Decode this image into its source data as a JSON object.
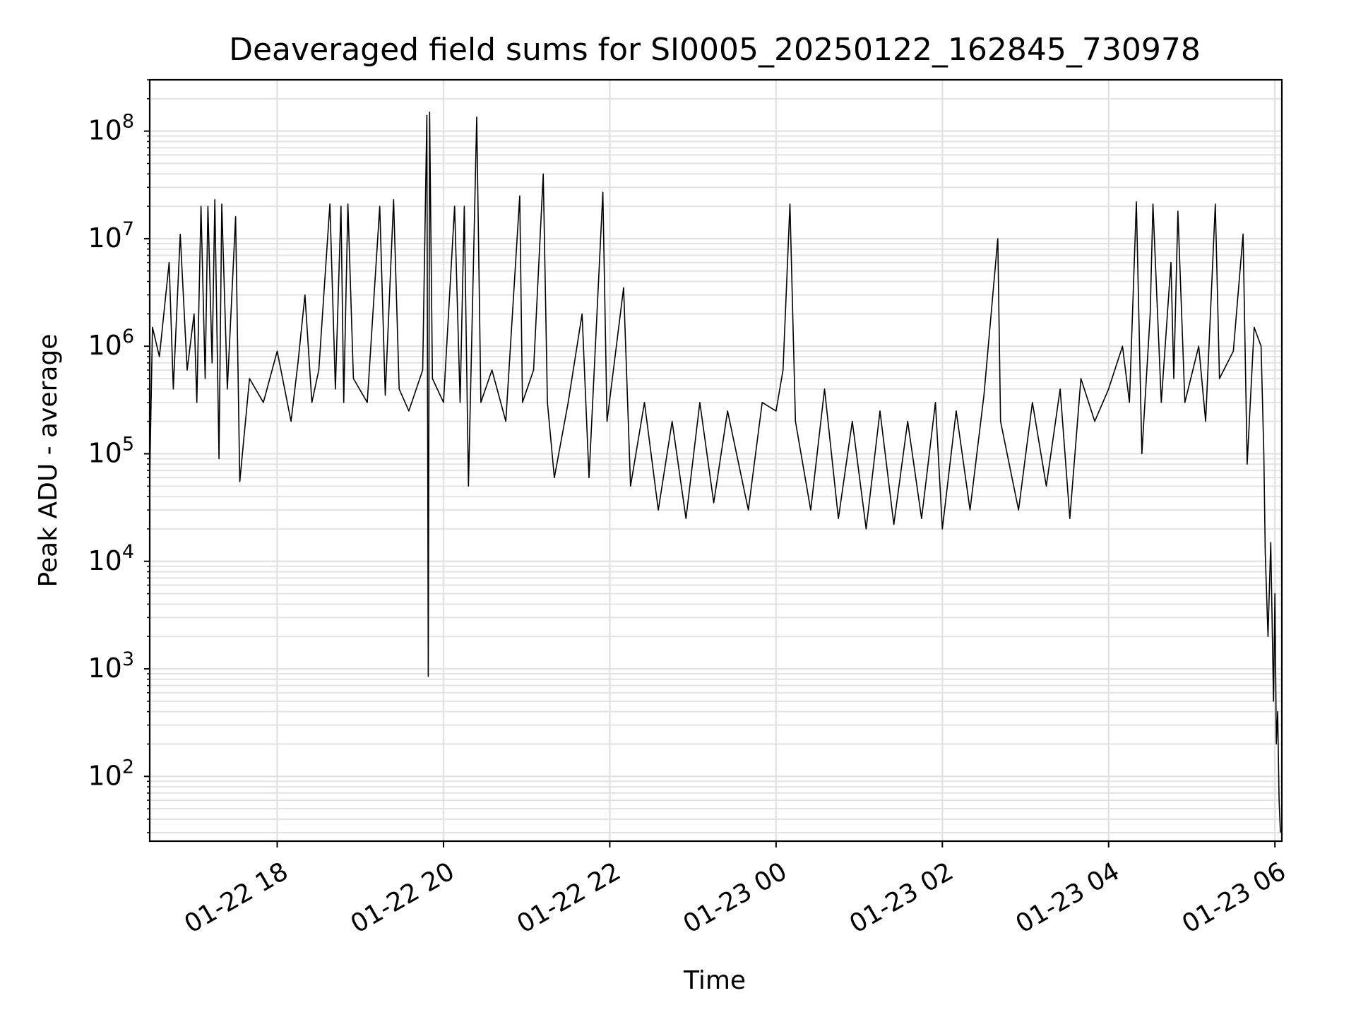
{
  "chart_data": {
    "type": "line",
    "title": "Deaveraged field sums for SI0005_20250122_162845_730978",
    "xlabel": "Time",
    "ylabel": "Peak ADU - average",
    "yscale": "log",
    "ylim": [
      25,
      300000000
    ],
    "xlim": [
      "2025-01-22 16:28",
      "2025-01-23 06:05"
    ],
    "grid": true,
    "line_color": "#000000",
    "grid_color": "#e3e3e3",
    "x_ticks": [
      {
        "t": "2025-01-22 18:00",
        "label": "01-22 18"
      },
      {
        "t": "2025-01-22 20:00",
        "label": "01-22 20"
      },
      {
        "t": "2025-01-22 22:00",
        "label": "01-22 22"
      },
      {
        "t": "2025-01-23 00:00",
        "label": "01-23 00"
      },
      {
        "t": "2025-01-23 02:00",
        "label": "01-23 02"
      },
      {
        "t": "2025-01-23 04:00",
        "label": "01-23 04"
      },
      {
        "t": "2025-01-23 06:00",
        "label": "01-23 06"
      }
    ],
    "y_ticks": [
      {
        "value": 100,
        "base": "10",
        "exp": "2"
      },
      {
        "value": 1000,
        "base": "10",
        "exp": "3"
      },
      {
        "value": 10000,
        "base": "10",
        "exp": "4"
      },
      {
        "value": 100000,
        "base": "10",
        "exp": "5"
      },
      {
        "value": 1000000,
        "base": "10",
        "exp": "6"
      },
      {
        "value": 10000000,
        "base": "10",
        "exp": "7"
      },
      {
        "value": 100000000,
        "base": "10",
        "exp": "8"
      }
    ],
    "series": [
      {
        "points": [
          [
            "2025-01-22 16:28",
            60000
          ],
          [
            "2025-01-22 16:30",
            1500000
          ],
          [
            "2025-01-22 16:35",
            800000
          ],
          [
            "2025-01-22 16:42",
            6000000
          ],
          [
            "2025-01-22 16:45",
            400000
          ],
          [
            "2025-01-22 16:50",
            11000000
          ],
          [
            "2025-01-22 16:55",
            600000
          ],
          [
            "2025-01-22 17:00",
            2000000
          ],
          [
            "2025-01-22 17:02",
            300000
          ],
          [
            "2025-01-22 17:05",
            20000000
          ],
          [
            "2025-01-22 17:08",
            500000
          ],
          [
            "2025-01-22 17:10",
            20000000
          ],
          [
            "2025-01-22 17:13",
            700000
          ],
          [
            "2025-01-22 17:15",
            23000000
          ],
          [
            "2025-01-22 17:18",
            90000
          ],
          [
            "2025-01-22 17:20",
            21000000
          ],
          [
            "2025-01-22 17:24",
            400000
          ],
          [
            "2025-01-22 17:30",
            16000000
          ],
          [
            "2025-01-22 17:33",
            55000
          ],
          [
            "2025-01-22 17:40",
            500000
          ],
          [
            "2025-01-22 17:50",
            300000
          ],
          [
            "2025-01-22 18:00",
            900000
          ],
          [
            "2025-01-22 18:10",
            200000
          ],
          [
            "2025-01-22 18:15",
            700000
          ],
          [
            "2025-01-22 18:20",
            3000000
          ],
          [
            "2025-01-22 18:25",
            300000
          ],
          [
            "2025-01-22 18:30",
            600000
          ],
          [
            "2025-01-22 18:38",
            21000000
          ],
          [
            "2025-01-22 18:42",
            400000
          ],
          [
            "2025-01-22 18:46",
            20000000
          ],
          [
            "2025-01-22 18:48",
            300000
          ],
          [
            "2025-01-22 18:51",
            21000000
          ],
          [
            "2025-01-22 18:55",
            500000
          ],
          [
            "2025-01-22 19:05",
            300000
          ],
          [
            "2025-01-22 19:14",
            20000000
          ],
          [
            "2025-01-22 19:18",
            350000
          ],
          [
            "2025-01-22 19:24",
            23000000
          ],
          [
            "2025-01-22 19:28",
            400000
          ],
          [
            "2025-01-22 19:35",
            250000
          ],
          [
            "2025-01-22 19:45",
            600000
          ],
          [
            "2025-01-22 19:48",
            140000000
          ],
          [
            "2025-01-22 19:49",
            850
          ],
          [
            "2025-01-22 19:50",
            150000000
          ],
          [
            "2025-01-22 19:52",
            500000
          ],
          [
            "2025-01-22 20:00",
            300000
          ],
          [
            "2025-01-22 20:08",
            20000000
          ],
          [
            "2025-01-22 20:12",
            300000
          ],
          [
            "2025-01-22 20:15",
            20000000
          ],
          [
            "2025-01-22 20:18",
            50000
          ],
          [
            "2025-01-22 20:24",
            135000000
          ],
          [
            "2025-01-22 20:27",
            300000
          ],
          [
            "2025-01-22 20:35",
            600000
          ],
          [
            "2025-01-22 20:45",
            200000
          ],
          [
            "2025-01-22 20:55",
            25000000
          ],
          [
            "2025-01-22 20:57",
            300000
          ],
          [
            "2025-01-22 21:05",
            600000
          ],
          [
            "2025-01-22 21:12",
            40000000
          ],
          [
            "2025-01-22 21:15",
            300000
          ],
          [
            "2025-01-22 21:20",
            60000
          ],
          [
            "2025-01-22 21:30",
            300000
          ],
          [
            "2025-01-22 21:40",
            2000000
          ],
          [
            "2025-01-22 21:45",
            60000
          ],
          [
            "2025-01-22 21:55",
            27000000
          ],
          [
            "2025-01-22 21:58",
            200000
          ],
          [
            "2025-01-22 22:10",
            3500000
          ],
          [
            "2025-01-22 22:15",
            50000
          ],
          [
            "2025-01-22 22:25",
            300000
          ],
          [
            "2025-01-22 22:35",
            30000
          ],
          [
            "2025-01-22 22:45",
            200000
          ],
          [
            "2025-01-22 22:55",
            25000
          ],
          [
            "2025-01-22 23:05",
            300000
          ],
          [
            "2025-01-22 23:15",
            35000
          ],
          [
            "2025-01-22 23:25",
            250000
          ],
          [
            "2025-01-22 23:40",
            30000
          ],
          [
            "2025-01-22 23:50",
            300000
          ],
          [
            "2025-01-23 00:00",
            250000
          ],
          [
            "2025-01-23 00:05",
            600000
          ],
          [
            "2025-01-23 00:10",
            21000000
          ],
          [
            "2025-01-23 00:14",
            200000
          ],
          [
            "2025-01-23 00:25",
            30000
          ],
          [
            "2025-01-23 00:35",
            400000
          ],
          [
            "2025-01-23 00:45",
            25000
          ],
          [
            "2025-01-23 00:55",
            200000
          ],
          [
            "2025-01-23 01:05",
            20000
          ],
          [
            "2025-01-23 01:15",
            250000
          ],
          [
            "2025-01-23 01:25",
            22000
          ],
          [
            "2025-01-23 01:35",
            200000
          ],
          [
            "2025-01-23 01:45",
            25000
          ],
          [
            "2025-01-23 01:55",
            300000
          ],
          [
            "2025-01-23 02:00",
            20000
          ],
          [
            "2025-01-23 02:10",
            250000
          ],
          [
            "2025-01-23 02:20",
            30000
          ],
          [
            "2025-01-23 02:30",
            350000
          ],
          [
            "2025-01-23 02:40",
            10000000
          ],
          [
            "2025-01-23 02:42",
            200000
          ],
          [
            "2025-01-23 02:55",
            30000
          ],
          [
            "2025-01-23 03:05",
            300000
          ],
          [
            "2025-01-23 03:15",
            50000
          ],
          [
            "2025-01-23 03:25",
            400000
          ],
          [
            "2025-01-23 03:32",
            25000
          ],
          [
            "2025-01-23 03:40",
            500000
          ],
          [
            "2025-01-23 03:50",
            200000
          ],
          [
            "2025-01-23 04:00",
            400000
          ],
          [
            "2025-01-23 04:10",
            1000000
          ],
          [
            "2025-01-23 04:15",
            300000
          ],
          [
            "2025-01-23 04:20",
            22000000
          ],
          [
            "2025-01-23 04:24",
            100000
          ],
          [
            "2025-01-23 04:30",
            2000000
          ],
          [
            "2025-01-23 04:32",
            21000000
          ],
          [
            "2025-01-23 04:38",
            300000
          ],
          [
            "2025-01-23 04:45",
            6000000
          ],
          [
            "2025-01-23 04:47",
            500000
          ],
          [
            "2025-01-23 04:50",
            18000000
          ],
          [
            "2025-01-23 04:55",
            300000
          ],
          [
            "2025-01-23 05:05",
            1000000
          ],
          [
            "2025-01-23 05:10",
            200000
          ],
          [
            "2025-01-23 05:17",
            21000000
          ],
          [
            "2025-01-23 05:20",
            500000
          ],
          [
            "2025-01-23 05:30",
            900000
          ],
          [
            "2025-01-23 05:37",
            11000000
          ],
          [
            "2025-01-23 05:40",
            80000
          ],
          [
            "2025-01-23 05:45",
            1500000
          ],
          [
            "2025-01-23 05:50",
            1000000
          ],
          [
            "2025-01-23 05:52",
            100000
          ],
          [
            "2025-01-23 05:53",
            12000
          ],
          [
            "2025-01-23 05:55",
            2000
          ],
          [
            "2025-01-23 05:57",
            15000
          ],
          [
            "2025-01-23 05:59",
            500
          ],
          [
            "2025-01-23 06:00",
            5000
          ],
          [
            "2025-01-23 06:01",
            200
          ],
          [
            "2025-01-23 06:02",
            400
          ],
          [
            "2025-01-23 06:03",
            60
          ],
          [
            "2025-01-23 06:04",
            30
          ]
        ]
      }
    ]
  }
}
